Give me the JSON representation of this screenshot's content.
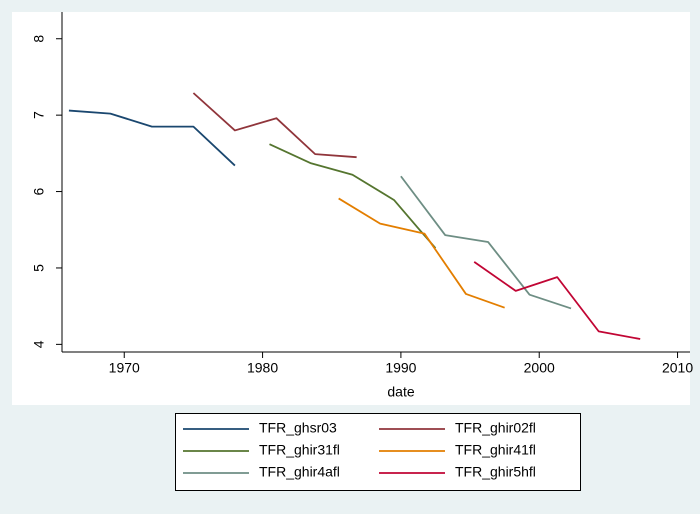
{
  "chart_data": {
    "type": "line",
    "x_label": "date",
    "xlim": [
      1965.5,
      2010.9
    ],
    "xticks": [
      1970,
      1980,
      1990,
      2000,
      2010
    ],
    "ylim": [
      3.9,
      8.35
    ],
    "yticks": [
      4,
      5,
      6,
      7,
      8
    ],
    "grid": false,
    "legend": "bottom",
    "series": [
      {
        "name": "TFR_ghsr03",
        "color": "#1a476f",
        "x": [
          1966,
          1969,
          1972,
          1975,
          1978
        ],
        "values": [
          7.06,
          7.02,
          6.85,
          6.85,
          6.34
        ]
      },
      {
        "name": "TFR_ghir02fl",
        "color": "#90353b",
        "x": [
          1975,
          1978,
          1981,
          1983.8,
          1986.8
        ],
        "values": [
          7.29,
          6.8,
          6.96,
          6.49,
          6.45
        ]
      },
      {
        "name": "TFR_ghir31fl",
        "color": "#55752f",
        "x": [
          1980.5,
          1983.5,
          1986.5,
          1989.5,
          1991.2,
          1992.5
        ],
        "values": [
          6.62,
          6.37,
          6.22,
          5.89,
          5.53,
          5.26
        ]
      },
      {
        "name": "TFR_ghir41fl",
        "color": "#e37e00",
        "x": [
          1985.5,
          1988.5,
          1991.7,
          1994.7,
          1997.5
        ],
        "values": [
          5.91,
          5.58,
          5.45,
          4.66,
          4.48
        ]
      },
      {
        "name": "TFR_ghir4afl",
        "color": "#6e8e84",
        "x": [
          1990,
          1993.2,
          1996.3,
          1999.3,
          2002.3
        ],
        "values": [
          6.2,
          5.43,
          5.34,
          4.65,
          4.47
        ]
      },
      {
        "name": "TFR_ghir5hfl",
        "color": "#c10534",
        "x": [
          1995.3,
          1998.3,
          2001.3,
          2004.3,
          2007.3
        ],
        "values": [
          5.08,
          4.7,
          4.88,
          4.17,
          4.07
        ]
      }
    ]
  }
}
